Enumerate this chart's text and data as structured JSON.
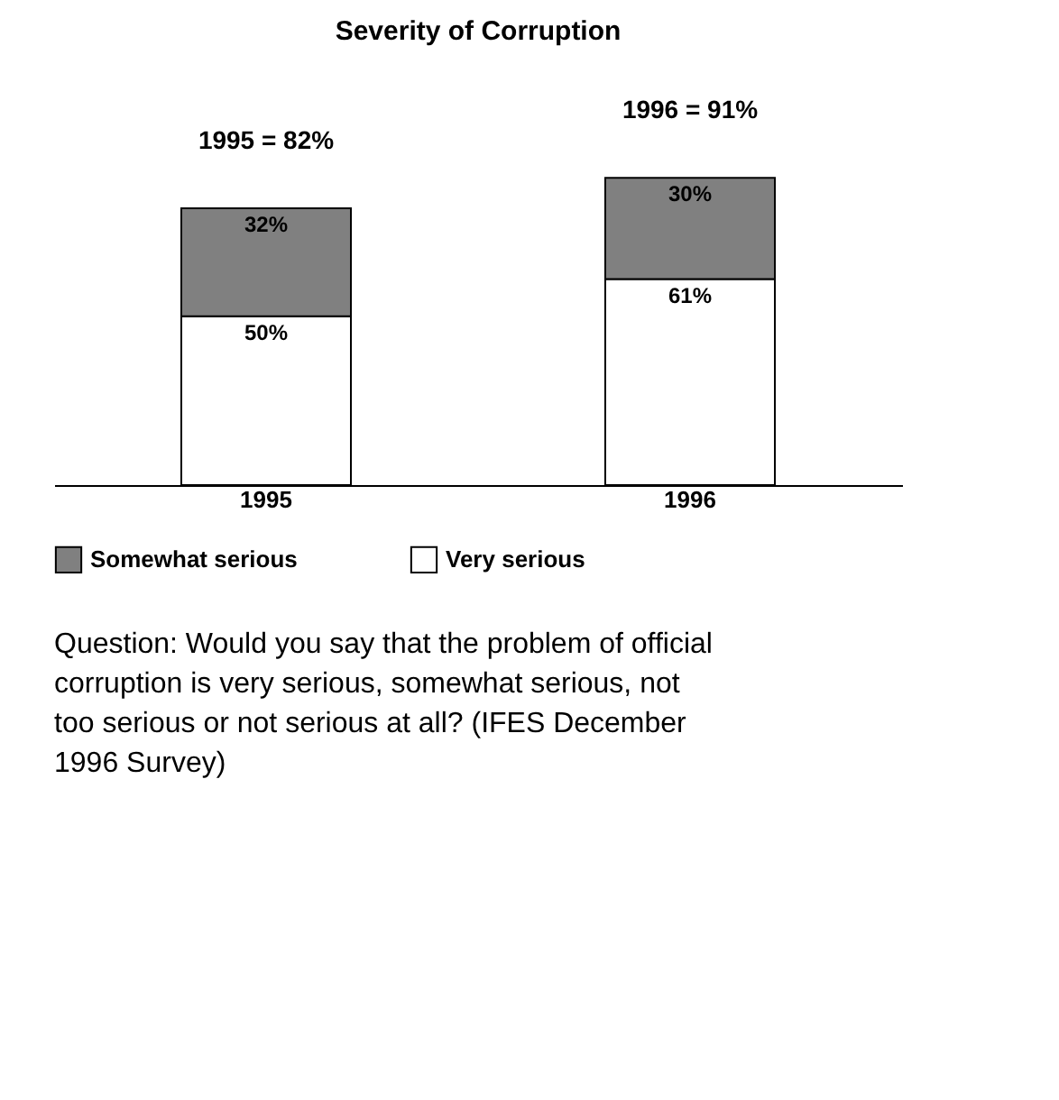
{
  "chart_data": {
    "type": "bar",
    "title": "Severity of Corruption",
    "categories": [
      "1995",
      "1996"
    ],
    "stacked": true,
    "series": [
      {
        "name": "Very serious",
        "color": "#ffffff",
        "values": [
          50,
          61
        ],
        "value_labels": [
          "50%",
          "61%"
        ]
      },
      {
        "name": "Somewhat serious",
        "color": "#808080",
        "values": [
          32,
          30
        ],
        "value_labels": [
          "32%",
          "30%"
        ]
      }
    ],
    "totals": [
      "1995 = 82%",
      "1996 = 91%"
    ],
    "legend": "bottom",
    "grid": false,
    "annotations": [
      "Question: Would you say that the problem of official corruption is very serious, somewhat serious, not too serious or not serious at all?  (IFES December 1996 Survey)"
    ]
  }
}
